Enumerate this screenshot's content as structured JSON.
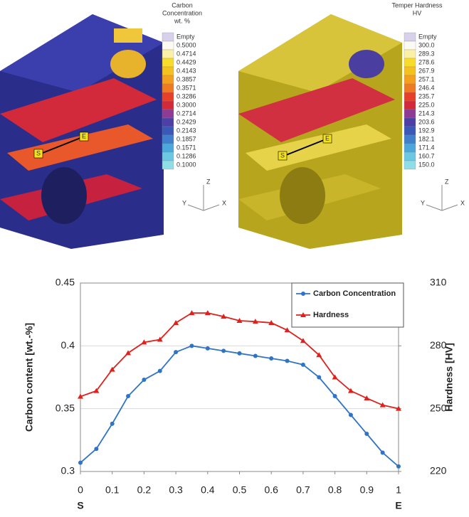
{
  "panels": [
    {
      "title": [
        "Carbon",
        "Concentration",
        "wt. %"
      ],
      "labels": [
        "Empty",
        "0.5000",
        "0.4714",
        "0.4429",
        "0.4143",
        "0.3857",
        "0.3571",
        "0.3286",
        "0.3000",
        "0.2714",
        "0.2429",
        "0.2143",
        "0.1857",
        "0.1571",
        "0.1286",
        "0.1000"
      ],
      "start": "S",
      "end": "E",
      "axes": [
        "Z",
        "Y",
        "X"
      ]
    },
    {
      "title": [
        "Temper Hardness",
        "HV"
      ],
      "labels": [
        "Empty",
        "300.0",
        "289.3",
        "278.6",
        "267.9",
        "257.1",
        "246.4",
        "235.7",
        "225.0",
        "214.3",
        "203.6",
        "192.9",
        "182.1",
        "171.4",
        "160.7",
        "150.0"
      ],
      "start": "S",
      "end": "E",
      "axes": [
        "Z",
        "Y",
        "X"
      ]
    }
  ],
  "chart_data": {
    "type": "line",
    "x": [
      0,
      0.05,
      0.1,
      0.15,
      0.2,
      0.25,
      0.3,
      0.35,
      0.4,
      0.45,
      0.5,
      0.55,
      0.6,
      0.65,
      0.7,
      0.75,
      0.8,
      0.85,
      0.9,
      0.95,
      1
    ],
    "series": [
      {
        "name": "Carbon Concentration",
        "color": "#2f74c6",
        "marker": "circle",
        "values": [
          0.307,
          0.318,
          0.338,
          0.36,
          0.373,
          0.38,
          0.395,
          0.4,
          0.398,
          0.396,
          0.394,
          0.392,
          0.39,
          0.388,
          0.385,
          0.375,
          0.36,
          0.345,
          0.33,
          0.315,
          0.304
        ]
      },
      {
        "name": "Hardness",
        "color": "#e0201b",
        "marker": "triangle",
        "axis": "y2",
        "values": [
          255.8,
          258.5,
          268.7,
          276.6,
          281.7,
          283,
          291,
          295.7,
          295.7,
          294,
          292,
          291.6,
          291,
          287.5,
          282.4,
          275.6,
          265,
          258.5,
          255,
          251.7,
          250
        ]
      }
    ],
    "xlim": [
      0,
      1
    ],
    "xticks": [
      0,
      0.1,
      0.2,
      0.3,
      0.4,
      0.5,
      0.6,
      0.7,
      0.8,
      0.9,
      1
    ],
    "ylim": [
      0.3,
      0.45
    ],
    "yticks": [
      0.3,
      0.35,
      0.4,
      0.45
    ],
    "y2lim": [
      220,
      310
    ],
    "y2ticks": [
      220,
      250,
      280,
      310
    ],
    "ylabel": "Carbon content [wt.-%]",
    "y2label": "Hardness [HV]",
    "annotations": [
      "S",
      "E"
    ],
    "grid": true,
    "legend": "top-right"
  }
}
